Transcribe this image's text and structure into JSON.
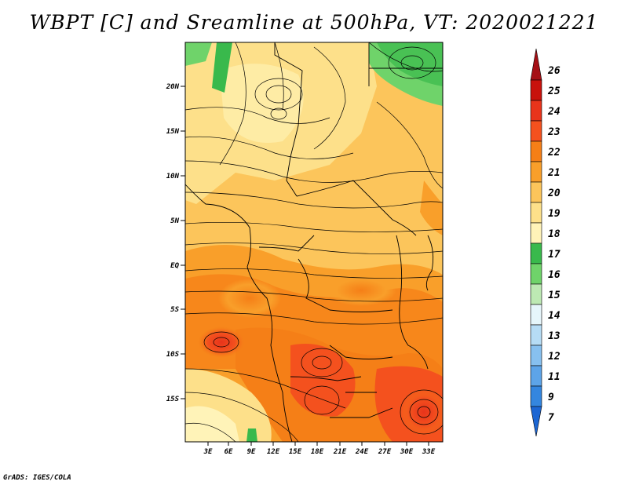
{
  "title": "WBPT [C] and Sreamline at 500hPa, VT: 2020021221",
  "credit": "GrADS: IGES/COLA",
  "lat_labels": [
    "20N",
    "15N",
    "10N",
    "5N",
    "EQ",
    "5S",
    "10S",
    "15S"
  ],
  "lon_labels": [
    "3E",
    "6E",
    "9E",
    "12E",
    "15E",
    "18E",
    "21E",
    "24E",
    "27E",
    "30E",
    "33E"
  ],
  "colorbar": {
    "levels": [
      "26",
      "25",
      "24",
      "23",
      "22",
      "21",
      "20",
      "19",
      "18",
      "17",
      "16",
      "15",
      "14",
      "13",
      "12",
      "11",
      "9",
      "7"
    ],
    "colors": [
      "#a50f15",
      "#c8120c",
      "#e8341b",
      "#f4511e",
      "#f57f17",
      "#f99f2a",
      "#fcc55b",
      "#fde08a",
      "#fff3b8",
      "#39b94c",
      "#6fd36a",
      "#bde9b3",
      "#e6f6fb",
      "#b6dcf5",
      "#87c0ef",
      "#5da4e8",
      "#3486df",
      "#1c66d3"
    ]
  }
}
